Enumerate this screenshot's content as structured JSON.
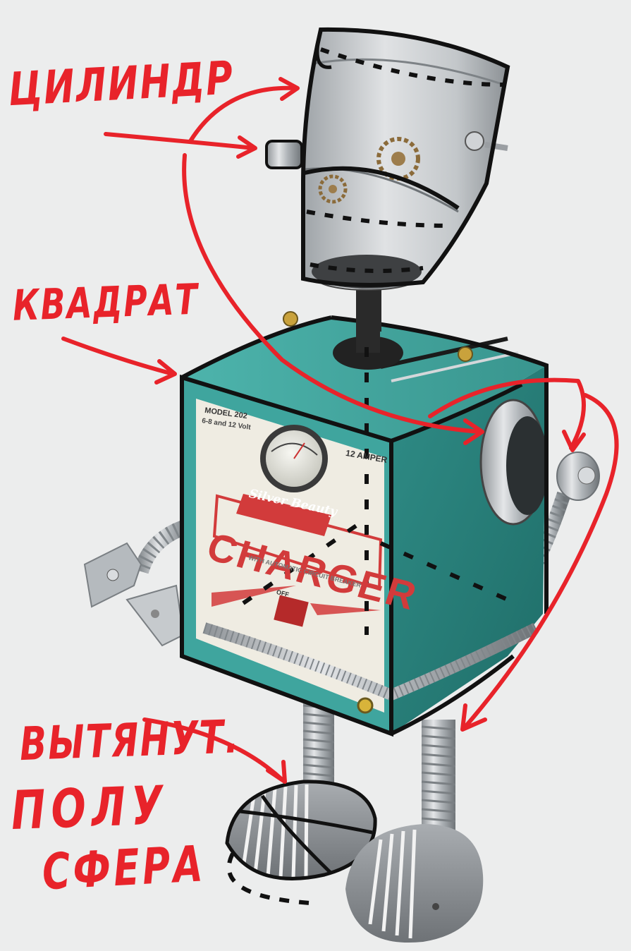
{
  "annotations": {
    "cylinder": "ЦИЛИНДР",
    "square": "КВАДРАТ",
    "hemisphere_line1": "ВЫТЯНУТ.",
    "hemisphere_line2": "ПОЛУ",
    "hemisphere_line3": "СФЕРА"
  },
  "charger_plate": {
    "model": "MODEL 202",
    "volts": "6-8 and 12 Volt",
    "amperes": "12 AMPER",
    "brand": "Silver Beauty",
    "title": "CHARGER",
    "subtitle": "WITH AUTOMATIC CIRCUIT BREAKER",
    "off": "OFF"
  },
  "colors": {
    "background": "#eceded",
    "annotation": "#e8232a",
    "outline": "#111111",
    "teal_body": "#3fa59e",
    "plate": "#efece2",
    "charger_red": "#d23b3b",
    "metal": "#b7bcc0"
  }
}
